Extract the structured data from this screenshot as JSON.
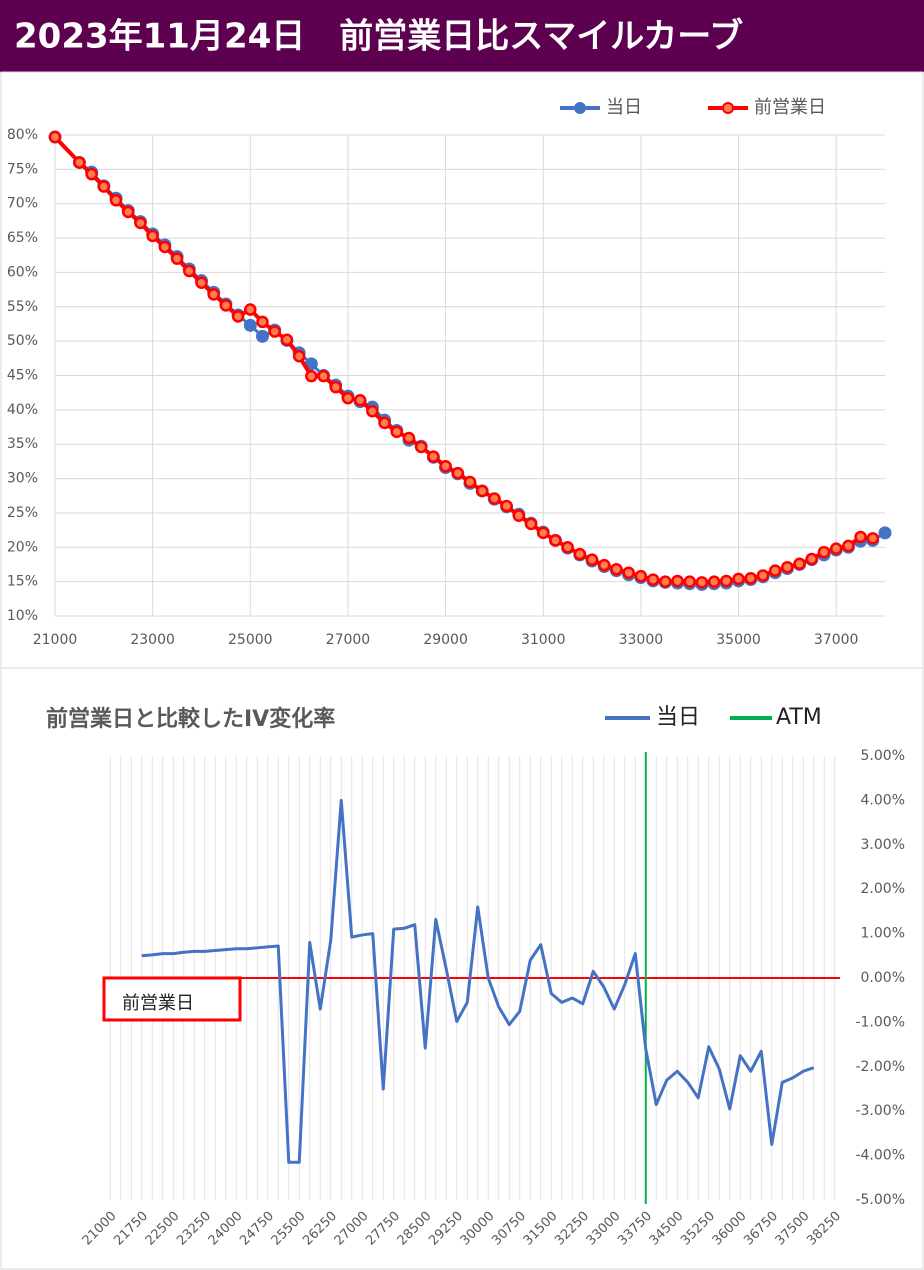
{
  "title": "2023年11月24日　前営業日比スマイルカーブ",
  "chart_data": [
    {
      "type": "line",
      "x": [
        21000,
        21500,
        21750,
        22000,
        22250,
        22500,
        22750,
        23000,
        23250,
        23500,
        23750,
        24000,
        24250,
        24500,
        24750,
        25000,
        25250,
        25500,
        25750,
        26000,
        26250,
        26500,
        26750,
        27000,
        27250,
        27500,
        27750,
        28000,
        28250,
        28500,
        28750,
        29000,
        29250,
        29500,
        29750,
        30000,
        30250,
        30500,
        30750,
        31000,
        31250,
        31500,
        31750,
        32000,
        32250,
        32500,
        32750,
        33000,
        33250,
        33500,
        33750,
        34000,
        34250,
        34500,
        34750,
        35000,
        35250,
        35500,
        35750,
        36000,
        36250,
        36500,
        36750,
        37000,
        37250,
        37500,
        37750,
        38000
      ],
      "series": [
        {
          "name": "当日",
          "color": "#4472c4",
          "values": [
            79.7,
            76.0,
            74.6,
            72.6,
            70.8,
            69.0,
            67.4,
            65.6,
            64.0,
            62.3,
            60.5,
            58.8,
            57.1,
            55.4,
            53.8,
            52.3,
            50.7,
            51.6,
            50.1,
            48.3,
            46.7,
            45.0,
            43.6,
            42.0,
            41.2,
            40.4,
            38.5,
            37.0,
            35.6,
            34.7,
            33.1,
            31.6,
            30.7,
            29.3,
            28.2,
            27.0,
            25.9,
            24.8,
            23.5,
            22.2,
            21.0,
            19.9,
            18.9,
            18.0,
            17.2,
            16.6,
            16.0,
            15.6,
            15.1,
            14.9,
            14.8,
            14.7,
            14.6,
            14.7,
            14.8,
            15.1,
            15.3,
            15.7,
            16.3,
            16.9,
            17.5,
            18.2,
            18.9,
            19.6,
            20.0,
            20.9,
            21.0,
            22.1
          ]
        },
        {
          "name": "前営業日",
          "color": "#ff0000",
          "values": [
            79.7,
            76.0,
            74.3,
            72.5,
            70.5,
            68.8,
            67.2,
            65.3,
            63.7,
            62.0,
            60.2,
            58.5,
            56.8,
            55.2,
            53.6,
            54.6,
            52.8,
            51.4,
            50.2,
            47.8,
            44.9,
            44.9,
            43.3,
            41.7,
            41.4,
            39.8,
            38.1,
            36.8,
            35.9,
            34.6,
            33.2,
            31.8,
            30.8,
            29.5,
            28.2,
            27.1,
            26.0,
            24.6,
            23.4,
            22.1,
            21.0,
            20.0,
            19.0,
            18.2,
            17.4,
            16.8,
            16.3,
            15.8,
            15.3,
            15.0,
            15.1,
            15.0,
            14.9,
            15.0,
            15.1,
            15.4,
            15.5,
            15.9,
            16.6,
            17.1,
            17.6,
            18.3,
            19.3,
            19.8,
            20.2,
            21.5,
            21.3,
            null
          ]
        }
      ],
      "xlim": [
        21000,
        38000
      ],
      "xticks": [
        21000,
        23000,
        25000,
        27000,
        29000,
        31000,
        33000,
        35000,
        37000
      ],
      "ylim": [
        10,
        80
      ],
      "yticks": [
        {
          "value": 10,
          "label": "10%"
        },
        {
          "value": 15,
          "label": "15%"
        },
        {
          "value": 20,
          "label": "20%"
        },
        {
          "value": 25,
          "label": "25%"
        },
        {
          "value": 30,
          "label": "30%"
        },
        {
          "value": 35,
          "label": "35%"
        },
        {
          "value": 40,
          "label": "40%"
        },
        {
          "value": 45,
          "label": "45%"
        },
        {
          "value": 50,
          "label": "50%"
        },
        {
          "value": 55,
          "label": "55%"
        },
        {
          "value": 60,
          "label": "60%"
        },
        {
          "value": 65,
          "label": "65%"
        },
        {
          "value": 70,
          "label": "70%"
        },
        {
          "value": 75,
          "label": "75%"
        },
        {
          "value": 80,
          "label": "80%"
        }
      ],
      "grid": true,
      "legend": "top-right"
    },
    {
      "type": "line",
      "title": "前営業日と比較したIV変化率",
      "categories": [
        "21000",
        null,
        null,
        "21750",
        null,
        null,
        "22500",
        null,
        null,
        "23250",
        null,
        null,
        "24000",
        null,
        null,
        "24750",
        null,
        null,
        "25500",
        null,
        null,
        "26250",
        null,
        null,
        "27000",
        null,
        null,
        "27750",
        null,
        null,
        "28500",
        null,
        null,
        "29250",
        null,
        null,
        "30000",
        null,
        null,
        "30750",
        null,
        null,
        "31500",
        null,
        null,
        "32250",
        null,
        null,
        "33000",
        null,
        null,
        "33750",
        null,
        null,
        "34500",
        null,
        null,
        "35250",
        null,
        null,
        "36000",
        null,
        null,
        "36750",
        null,
        null,
        "37500",
        null,
        null,
        "38250"
      ],
      "series": [
        {
          "name": "当日",
          "color": "#4472c4",
          "values": [
            null,
            null,
            null,
            0.5,
            0.52,
            0.55,
            0.55,
            0.58,
            0.6,
            0.6,
            0.62,
            0.64,
            0.66,
            0.66,
            0.68,
            0.7,
            0.72,
            -4.15,
            -4.15,
            0.8,
            -0.7,
            0.85,
            4.0,
            0.92,
            0.97,
            1.0,
            -2.5,
            1.1,
            1.12,
            1.2,
            -1.58,
            1.32,
            0.2,
            -0.98,
            -0.55,
            1.6,
            0.0,
            -0.65,
            -1.05,
            -0.75,
            0.4,
            0.75,
            -0.35,
            -0.55,
            -0.45,
            -0.58,
            0.15,
            -0.2,
            -0.7,
            -0.15,
            0.55,
            -1.6,
            -2.85,
            -2.3,
            -2.1,
            -2.35,
            -2.7,
            -1.55,
            -2.05,
            -2.95,
            -1.75,
            -2.1,
            -1.65,
            -3.75,
            -2.35,
            -2.25,
            -2.1,
            -2.02,
            null,
            null
          ]
        }
      ],
      "atm": {
        "name": "ATM",
        "color": "#00b050",
        "x": "33750"
      },
      "baseline": {
        "label": "前営業日",
        "value": 0,
        "color": "#ff0000"
      },
      "ylim": [
        -5,
        5
      ],
      "yticks": [
        {
          "value": 5,
          "label": "5.00%"
        },
        {
          "value": 4,
          "label": "4.00%"
        },
        {
          "value": 3,
          "label": "3.00%"
        },
        {
          "value": 2,
          "label": "2.00%"
        },
        {
          "value": 1,
          "label": "1.00%"
        },
        {
          "value": 0,
          "label": "0.00%"
        },
        {
          "value": -1,
          "label": "-1.00%"
        },
        {
          "value": -2,
          "label": "-2.00%"
        },
        {
          "value": -3,
          "label": "-3.00%"
        },
        {
          "value": -4,
          "label": "-4.00%"
        },
        {
          "value": -5,
          "label": "-5.00%"
        }
      ],
      "yaxis_side": "right",
      "grid": true,
      "legend": "top-right"
    }
  ]
}
